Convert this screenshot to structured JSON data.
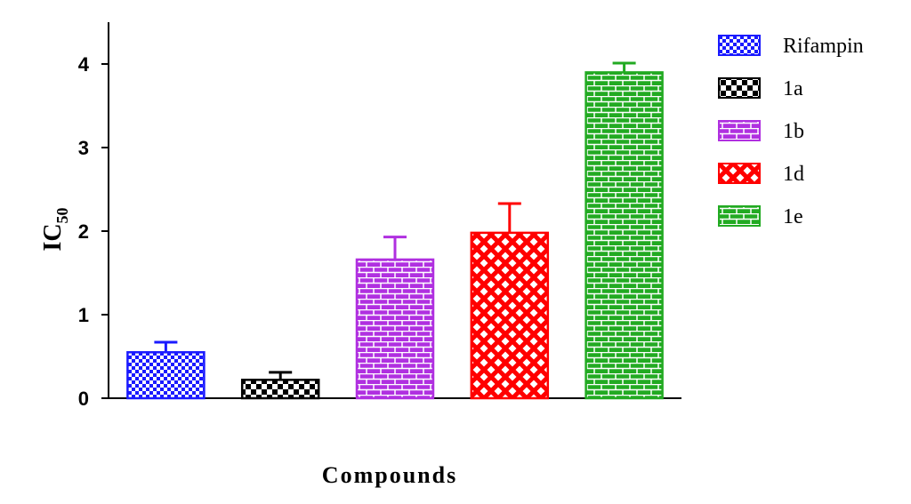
{
  "chart_data": {
    "type": "bar",
    "categories": [
      "Rifampin",
      "1a",
      "1b",
      "1d",
      "1e"
    ],
    "values": [
      0.55,
      0.22,
      1.66,
      1.98,
      3.9
    ],
    "errors": [
      0.12,
      0.09,
      0.27,
      0.35,
      0.11
    ],
    "colors": [
      "#1a1aff",
      "#000000",
      "#b030e0",
      "#ff0000",
      "#22aa22"
    ],
    "patterns": [
      "checker",
      "checker-large",
      "brick",
      "crosshatch",
      "brick"
    ],
    "xlabel": "Compounds",
    "ylabel_main": "IC",
    "ylabel_sub": "50",
    "yticks": [
      "0",
      "1",
      "2",
      "3",
      "4"
    ],
    "ylim": [
      0,
      4.5
    ],
    "legend_position": "top-right",
    "grid": false
  }
}
